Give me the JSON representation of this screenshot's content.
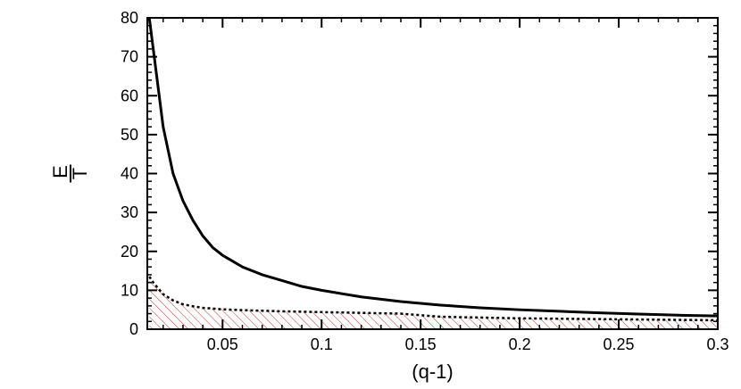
{
  "chart_data": {
    "type": "line",
    "title": "",
    "xlabel": "(q-1)",
    "ylabel_numerator": "E",
    "ylabel_denominator": "T",
    "xlim": [
      0.012,
      0.3
    ],
    "ylim": [
      0,
      80
    ],
    "x_ticks": [
      0.05,
      0.1,
      0.15,
      0.2,
      0.25,
      0.3
    ],
    "x_tick_labels": [
      "0.05",
      "0.1",
      "0.15",
      "0.2",
      "0.25",
      "0.3"
    ],
    "y_ticks": [
      0,
      10,
      20,
      30,
      40,
      50,
      60,
      70,
      80
    ],
    "y_tick_labels": [
      "0",
      "10",
      "20",
      "30",
      "40",
      "50",
      "60",
      "70",
      "80"
    ],
    "x_minor_step": 0.01,
    "y_minor_step": 2,
    "series": [
      {
        "style": "solid",
        "color": "#000000",
        "x": [
          0.013,
          0.015,
          0.02,
          0.025,
          0.03,
          0.035,
          0.04,
          0.045,
          0.05,
          0.06,
          0.07,
          0.08,
          0.09,
          0.1,
          0.12,
          0.14,
          0.16,
          0.18,
          0.2,
          0.22,
          0.24,
          0.26,
          0.28,
          0.3
        ],
        "y": [
          80,
          72,
          52,
          40,
          33,
          28,
          24,
          21,
          19,
          16,
          14,
          12.5,
          11,
          10,
          8.3,
          7.1,
          6.2,
          5.5,
          5.0,
          4.6,
          4.2,
          3.9,
          3.6,
          3.4
        ]
      },
      {
        "style": "dotted",
        "color": "#000000",
        "x": [
          0.013,
          0.015,
          0.02,
          0.025,
          0.03,
          0.035,
          0.04,
          0.05,
          0.06,
          0.08,
          0.1,
          0.12,
          0.14,
          0.15,
          0.16,
          0.18,
          0.2,
          0.22,
          0.24,
          0.26,
          0.28,
          0.3
        ],
        "y": [
          13.5,
          12,
          9,
          7.4,
          6.4,
          5.9,
          5.5,
          5.1,
          4.9,
          4.6,
          4.4,
          4.2,
          4.0,
          3.6,
          3.2,
          3.0,
          2.8,
          2.7,
          2.6,
          2.5,
          2.4,
          2.3
        ]
      }
    ],
    "shaded_region": {
      "under_series": 1,
      "hatch_color": "#c0392b",
      "pattern": "diagonal-hatch"
    }
  }
}
